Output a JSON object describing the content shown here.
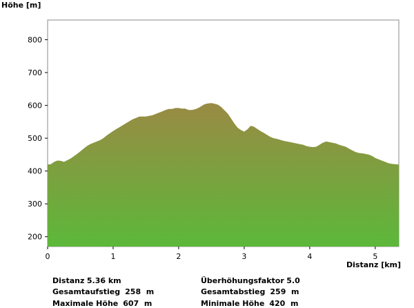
{
  "chart_data": {
    "type": "area",
    "title": "",
    "xlabel": "Distanz [km]",
    "ylabel": "Höhe [m]",
    "xlim": [
      0,
      5.36
    ],
    "ylim": [
      170,
      860
    ],
    "x_ticks": [
      0,
      1,
      2,
      3,
      4,
      5
    ],
    "y_ticks": [
      200,
      300,
      400,
      500,
      600,
      700,
      800
    ],
    "grid": false,
    "legend": "none",
    "fill_gradient": {
      "top": "#9a8a44",
      "bottom": "#5cb83a"
    },
    "series": [
      {
        "x": [
          0,
          0.05,
          0.1,
          0.15,
          0.2,
          0.25,
          0.3,
          0.35,
          0.4,
          0.45,
          0.5,
          0.55,
          0.6,
          0.65,
          0.7,
          0.75,
          0.8,
          0.85,
          0.9,
          0.95,
          1.0,
          1.05,
          1.1,
          1.15,
          1.2,
          1.25,
          1.3,
          1.35,
          1.4,
          1.45,
          1.5,
          1.55,
          1.6,
          1.65,
          1.7,
          1.75,
          1.8,
          1.85,
          1.9,
          1.95,
          2.0,
          2.05,
          2.1,
          2.15,
          2.2,
          2.25,
          2.3,
          2.35,
          2.4,
          2.45,
          2.5,
          2.55,
          2.6,
          2.65,
          2.7,
          2.75,
          2.8,
          2.85,
          2.9,
          2.95,
          3.0,
          3.05,
          3.1,
          3.15,
          3.2,
          3.25,
          3.3,
          3.35,
          3.4,
          3.45,
          3.5,
          3.55,
          3.6,
          3.65,
          3.7,
          3.75,
          3.8,
          3.85,
          3.9,
          3.95,
          4.0,
          4.05,
          4.1,
          4.15,
          4.2,
          4.25,
          4.3,
          4.35,
          4.4,
          4.45,
          4.5,
          4.55,
          4.6,
          4.65,
          4.7,
          4.75,
          4.8,
          4.85,
          4.9,
          4.95,
          5.0,
          5.05,
          5.1,
          5.15,
          5.2,
          5.25,
          5.3,
          5.36
        ],
        "y": [
          420,
          421,
          428,
          432,
          431,
          428,
          433,
          438,
          445,
          452,
          460,
          468,
          476,
          482,
          486,
          490,
          494,
          500,
          508,
          515,
          522,
          528,
          534,
          540,
          546,
          552,
          558,
          562,
          566,
          566,
          566,
          568,
          570,
          574,
          578,
          582,
          586,
          589,
          589,
          592,
          592,
          590,
          590,
          586,
          586,
          588,
          592,
          598,
          604,
          606,
          607,
          605,
          602,
          595,
          585,
          575,
          560,
          545,
          532,
          525,
          520,
          527,
          538,
          535,
          528,
          522,
          516,
          510,
          504,
          500,
          498,
          495,
          492,
          490,
          488,
          486,
          484,
          482,
          480,
          476,
          474,
          473,
          474,
          480,
          486,
          490,
          488,
          486,
          484,
          480,
          477,
          474,
          468,
          463,
          458,
          455,
          454,
          452,
          450,
          446,
          440,
          436,
          432,
          428,
          424,
          422,
          421,
          420
        ]
      }
    ]
  },
  "stats": {
    "left": [
      {
        "label": "Distanz",
        "value": "5.36 km"
      },
      {
        "label": "Gesamtaufstieg",
        "value": "258  m"
      },
      {
        "label": "Maximale Höhe",
        "value": "607  m"
      }
    ],
    "right": [
      {
        "label": "Überhöhungsfaktor",
        "value": "5.0"
      },
      {
        "label": "Gesamtabstieg",
        "value": "259  m"
      },
      {
        "label": "Minimale Höhe",
        "value": "420  m"
      }
    ]
  }
}
